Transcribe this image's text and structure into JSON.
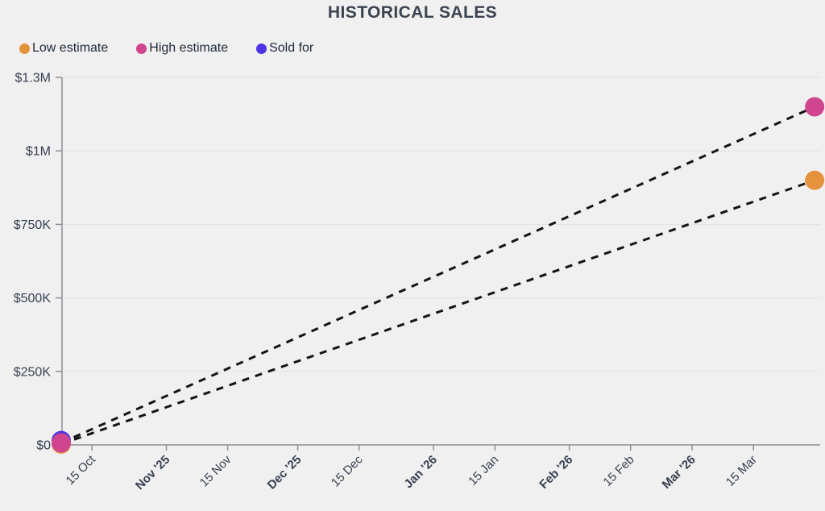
{
  "legend": {
    "items": [
      {
        "label": "Low estimate",
        "color": "#e5923d"
      },
      {
        "label": "High estimate",
        "color": "#d04590"
      },
      {
        "label": "Sold for",
        "color": "#4e35e4"
      }
    ]
  },
  "chart_data": {
    "type": "line",
    "title": "HISTORICAL SALES",
    "background_color": "#f0f0f0",
    "line_color": "#141414",
    "line_style": "dashed",
    "y_axis": {
      "tick_labels": [
        "$0",
        "$250K",
        "$500K",
        "$750K",
        "$1M",
        "$1.3M"
      ],
      "min": 0,
      "max": 1300000,
      "gridlines": true
    },
    "x_axis": {
      "approx_start_date": "8 Oct '25",
      "approx_end_date": "29 Mar '26",
      "start_day": 0,
      "end_day": 172,
      "ticks": [
        {
          "label": "15 Oct",
          "day": 7,
          "bold": false
        },
        {
          "label": "Nov '25",
          "day": 24,
          "bold": true
        },
        {
          "label": "15 Nov",
          "day": 38,
          "bold": false
        },
        {
          "label": "Dec '25",
          "day": 54,
          "bold": true
        },
        {
          "label": "15 Dec",
          "day": 68,
          "bold": false
        },
        {
          "label": "Jan '26",
          "day": 85,
          "bold": true
        },
        {
          "label": "15 Jan",
          "day": 99,
          "bold": false
        },
        {
          "label": "Feb '26",
          "day": 116,
          "bold": true
        },
        {
          "label": "15 Feb",
          "day": 130,
          "bold": false
        },
        {
          "label": "Mar '26",
          "day": 144,
          "bold": true
        },
        {
          "label": "15 Mar",
          "day": 158,
          "bold": false
        }
      ]
    },
    "series": [
      {
        "name": "Low estimate",
        "color": "#e5923d",
        "has_line": true,
        "points": [
          {
            "day": 0,
            "value": 3000
          },
          {
            "day": 172,
            "value": 900000
          }
        ]
      },
      {
        "name": "High estimate",
        "color": "#d04590",
        "has_line": true,
        "points": [
          {
            "day": 0,
            "value": 7000
          },
          {
            "day": 172,
            "value": 1150000
          }
        ]
      },
      {
        "name": "Sold for",
        "color": "#4e35e4",
        "has_line": false,
        "points": [
          {
            "day": 0,
            "value": 15000
          }
        ]
      }
    ]
  }
}
